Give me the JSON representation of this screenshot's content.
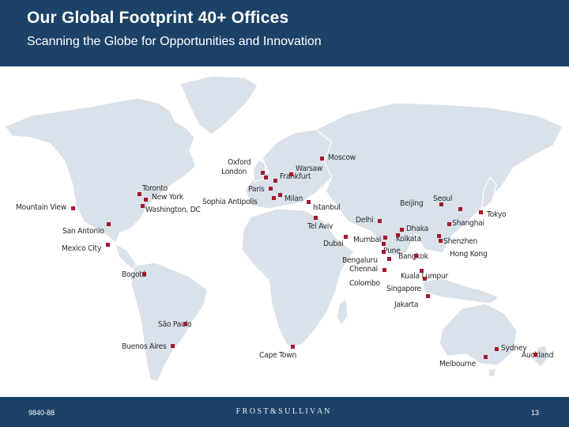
{
  "header": {
    "title": "Our Global Footprint 40+ Offices",
    "subtitle": "Scanning the Globe for Opportunities and Innovation"
  },
  "map": {
    "land_color": "#d9e1ea",
    "land_stroke": "#ffffff",
    "marker_color": "#a3182b",
    "cities": [
      {
        "name": "Mountain View",
        "lon": -122.1,
        "lat": 37.4
      },
      {
        "name": "San Antonio",
        "lon": -98.5,
        "lat": 29.4
      },
      {
        "name": "Mexico City",
        "lon": -99.1,
        "lat": 19.4
      },
      {
        "name": "Toronto",
        "lon": -79.4,
        "lat": 43.7
      },
      {
        "name": "New York",
        "lon": -74.0,
        "lat": 40.7
      },
      {
        "name": "Washington, DC",
        "lon": -77.0,
        "lat": 38.9
      },
      {
        "name": "Bogotá",
        "lon": -74.1,
        "lat": 4.7
      },
      {
        "name": "São Paulo",
        "lon": -46.6,
        "lat": -23.5
      },
      {
        "name": "Buenos Aires",
        "lon": -58.4,
        "lat": -34.6
      },
      {
        "name": "Oxford",
        "lon": -1.3,
        "lat": 51.8
      },
      {
        "name": "London",
        "lon": -0.1,
        "lat": 51.5
      },
      {
        "name": "Paris",
        "lon": 2.35,
        "lat": 48.9
      },
      {
        "name": "Sophia Antipolis",
        "lon": 7.05,
        "lat": 43.6
      },
      {
        "name": "Frankfurt",
        "lon": 8.7,
        "lat": 50.1
      },
      {
        "name": "Warsaw",
        "lon": 21.0,
        "lat": 52.2
      },
      {
        "name": "Moscow",
        "lon": 37.6,
        "lat": 55.8
      },
      {
        "name": "Milan",
        "lon": 9.2,
        "lat": 45.5
      },
      {
        "name": "Istanbul",
        "lon": 29.0,
        "lat": 41.0
      },
      {
        "name": "Tel Aviv",
        "lon": 34.8,
        "lat": 32.1
      },
      {
        "name": "Dubai",
        "lon": 55.3,
        "lat": 25.3
      },
      {
        "name": "Cape Town",
        "lon": 18.4,
        "lat": -33.9
      },
      {
        "name": "Delhi",
        "lon": 77.2,
        "lat": 28.6
      },
      {
        "name": "Mumbai",
        "lon": 72.9,
        "lat": 19.1
      },
      {
        "name": "Pune",
        "lon": 73.9,
        "lat": 18.5
      },
      {
        "name": "Bengaluru",
        "lon": 77.6,
        "lat": 13.0
      },
      {
        "name": "Chennai",
        "lon": 80.3,
        "lat": 13.1
      },
      {
        "name": "Colombo",
        "lon": 79.9,
        "lat": 6.9
      },
      {
        "name": "Dhaka",
        "lon": 90.4,
        "lat": 23.8
      },
      {
        "name": "Kolkata",
        "lon": 88.4,
        "lat": 22.6
      },
      {
        "name": "Bangkok",
        "lon": 100.5,
        "lat": 13.8
      },
      {
        "name": "Kuala Lumpur",
        "lon": 101.7,
        "lat": 3.1
      },
      {
        "name": "Singapore",
        "lon": 103.8,
        "lat": 1.35
      },
      {
        "name": "Jakarta",
        "lon": 106.8,
        "lat": -6.2
      },
      {
        "name": "Beijing",
        "lon": 116.4,
        "lat": 39.9
      },
      {
        "name": "Seoul",
        "lon": 127.0,
        "lat": 37.6
      },
      {
        "name": "Tokyo",
        "lon": 139.7,
        "lat": 35.7
      },
      {
        "name": "Shanghai",
        "lon": 121.5,
        "lat": 31.2
      },
      {
        "name": "Shenzhen",
        "lon": 114.1,
        "lat": 22.5
      },
      {
        "name": "Hong Kong",
        "lon": 114.2,
        "lat": 22.3
      },
      {
        "name": "Sydney",
        "lon": 151.2,
        "lat": -33.9
      },
      {
        "name": "Melbourne",
        "lon": 145.0,
        "lat": -37.8
      },
      {
        "name": "Auckland",
        "lon": 174.8,
        "lat": -36.8
      }
    ]
  },
  "footer": {
    "doc_code": "9840-88",
    "brand": "F R O S T  &  S U L L I V A N",
    "page_number": "13"
  }
}
